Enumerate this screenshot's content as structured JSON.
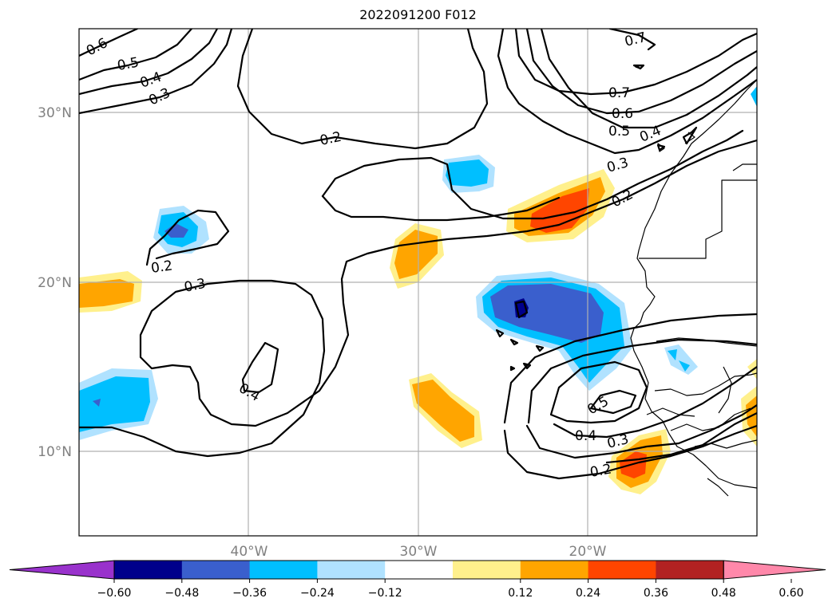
{
  "title": "2022091200 F012",
  "map": {
    "lat_labels": [
      "30°N",
      "20°N",
      "10°N"
    ],
    "lon_labels": [
      "40°W",
      "30°W",
      "20°W"
    ],
    "contour_labels": [
      "0.6",
      "0.5",
      "0.4",
      "0.3",
      "0.2",
      "0.2",
      "0.3",
      "0.4",
      "0.7",
      "0.7",
      "0.6",
      "0.5",
      "0.4",
      "0.3",
      "0.2",
      "0.5",
      "0.4",
      "0.3",
      "0.2"
    ]
  },
  "colorbar": {
    "ticks": [
      "−0.60",
      "−0.48",
      "−0.36",
      "−0.24",
      "−0.12",
      "0.12",
      "0.24",
      "0.36",
      "0.48",
      "0.60"
    ],
    "colors": [
      "#9932cc",
      "#00008b",
      "#3a5fcd",
      "#00bfff",
      "#b0e2ff",
      "#ffffff",
      "#fff08c",
      "#ffa500",
      "#ff4500",
      "#b22222",
      "#ff88aa"
    ]
  }
}
